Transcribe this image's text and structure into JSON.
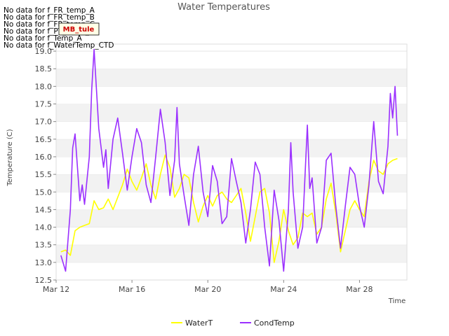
{
  "chart_data": {
    "type": "line",
    "title": "Water Temperatures",
    "xlabel": "Time",
    "ylabel": "Temperature (C)",
    "xlim": [
      "Mar 12",
      "Mar 30 12:00"
    ],
    "ylim": [
      12.5,
      19.2
    ],
    "x_ticks": [
      "Mar 12",
      "Mar 16",
      "Mar 20",
      "Mar 24",
      "Mar 28"
    ],
    "y_ticks": [
      "12.5",
      "13.0",
      "13.5",
      "14.0",
      "14.5",
      "15.0",
      "15.5",
      "16.0",
      "16.5",
      "17.0",
      "17.5",
      "18.0",
      "18.5",
      "19.0"
    ],
    "grid": "horizontal bands",
    "legend_position": "bottom-center",
    "no_data_messages": [
      "No data for f_FR_temp_A",
      "No data for f_FR_temp_B",
      "No data for f_FR_temp_C",
      "No data for f_PT_temp_A",
      "No data for f_Temp_A",
      "No data for f_WaterTemp_CTD"
    ],
    "tag_label": "MB_tule",
    "series": [
      {
        "name": "WaterT",
        "color": "#ffff00",
        "points": [
          [
            "Mar 12 06:00",
            13.3
          ],
          [
            "Mar 12 12:00",
            13.35
          ],
          [
            "Mar 12 18:00",
            13.2
          ],
          [
            "Mar 13 00:00",
            13.9
          ],
          [
            "Mar 13 06:00",
            14.0
          ],
          [
            "Mar 13 12:00",
            14.05
          ],
          [
            "Mar 13 18:00",
            14.1
          ],
          [
            "Mar 14 00:00",
            14.75
          ],
          [
            "Mar 14 06:00",
            14.5
          ],
          [
            "Mar 14 12:00",
            14.55
          ],
          [
            "Mar 14 18:00",
            14.8
          ],
          [
            "Mar 15 00:00",
            14.5
          ],
          [
            "Mar 15 12:00",
            15.2
          ],
          [
            "Mar 15 18:00",
            15.65
          ],
          [
            "Mar 16 00:00",
            15.3
          ],
          [
            "Mar 16 06:00",
            15.05
          ],
          [
            "Mar 16 12:00",
            15.4
          ],
          [
            "Mar 16 18:00",
            15.8
          ],
          [
            "Mar 17 00:00",
            15.2
          ],
          [
            "Mar 17 06:00",
            14.8
          ],
          [
            "Mar 17 12:00",
            15.5
          ],
          [
            "Mar 17 18:00",
            16.05
          ],
          [
            "Mar 18 00:00",
            15.7
          ],
          [
            "Mar 18 06:00",
            14.85
          ],
          [
            "Mar 18 12:00",
            15.1
          ],
          [
            "Mar 18 18:00",
            15.5
          ],
          [
            "Mar 19 00:00",
            15.4
          ],
          [
            "Mar 19 06:00",
            14.7
          ],
          [
            "Mar 19 12:00",
            14.15
          ],
          [
            "Mar 19 18:00",
            14.6
          ],
          [
            "Mar 20 00:00",
            14.9
          ],
          [
            "Mar 20 06:00",
            14.6
          ],
          [
            "Mar 20 12:00",
            14.9
          ],
          [
            "Mar 20 18:00",
            15.0
          ],
          [
            "Mar 21 00:00",
            14.8
          ],
          [
            "Mar 21 06:00",
            14.7
          ],
          [
            "Mar 21 12:00",
            14.9
          ],
          [
            "Mar 21 18:00",
            15.1
          ],
          [
            "Mar 22 00:00",
            14.4
          ],
          [
            "Mar 22 06:00",
            13.6
          ],
          [
            "Mar 22 12:00",
            14.3
          ],
          [
            "Mar 22 18:00",
            15.0
          ],
          [
            "Mar 23 00:00",
            15.1
          ],
          [
            "Mar 23 06:00",
            14.4
          ],
          [
            "Mar 23 12:00",
            13.0
          ],
          [
            "Mar 23 18:00",
            13.6
          ],
          [
            "Mar 24 00:00",
            14.5
          ],
          [
            "Mar 24 06:00",
            13.9
          ],
          [
            "Mar 24 12:00",
            13.5
          ],
          [
            "Mar 24 18:00",
            13.7
          ],
          [
            "Mar 25 00:00",
            14.4
          ],
          [
            "Mar 25 06:00",
            14.3
          ],
          [
            "Mar 25 12:00",
            14.4
          ],
          [
            "Mar 25 18:00",
            13.8
          ],
          [
            "Mar 26 00:00",
            14.0
          ],
          [
            "Mar 26 06:00",
            14.8
          ],
          [
            "Mar 26 12:00",
            15.25
          ],
          [
            "Mar 26 18:00",
            14.4
          ],
          [
            "Mar 27 00:00",
            13.3
          ],
          [
            "Mar 27 06:00",
            13.9
          ],
          [
            "Mar 27 12:00",
            14.5
          ],
          [
            "Mar 27 18:00",
            14.75
          ],
          [
            "Mar 28 00:00",
            14.5
          ],
          [
            "Mar 28 06:00",
            14.3
          ],
          [
            "Mar 28 12:00",
            15.3
          ],
          [
            "Mar 28 18:00",
            15.9
          ],
          [
            "Mar 29 00:00",
            15.6
          ],
          [
            "Mar 29 06:00",
            15.5
          ],
          [
            "Mar 29 12:00",
            15.8
          ],
          [
            "Mar 29 18:00",
            15.9
          ],
          [
            "Mar 30 00:00",
            15.95
          ]
        ]
      },
      {
        "name": "CondTemp",
        "color": "#9b30ff",
        "points": [
          [
            "Mar 12 06:00",
            13.2
          ],
          [
            "Mar 12 12:00",
            12.75
          ],
          [
            "Mar 12 18:00",
            14.5
          ],
          [
            "Mar 12 21:00",
            16.25
          ],
          [
            "Mar 13 00:00",
            16.65
          ],
          [
            "Mar 13 06:00",
            14.75
          ],
          [
            "Mar 13 09:00",
            15.2
          ],
          [
            "Mar 13 12:00",
            14.65
          ],
          [
            "Mar 13 18:00",
            16.0
          ],
          [
            "Mar 13 21:00",
            17.9
          ],
          [
            "Mar 14 00:00",
            19.05
          ],
          [
            "Mar 14 06:00",
            16.8
          ],
          [
            "Mar 14 12:00",
            15.7
          ],
          [
            "Mar 14 15:00",
            16.2
          ],
          [
            "Mar 14 18:00",
            15.1
          ],
          [
            "Mar 15 00:00",
            16.5
          ],
          [
            "Mar 15 06:00",
            17.1
          ],
          [
            "Mar 15 12:00",
            16.1
          ],
          [
            "Mar 15 18:00",
            15.05
          ],
          [
            "Mar 16 00:00",
            16.0
          ],
          [
            "Mar 16 06:00",
            16.8
          ],
          [
            "Mar 16 12:00",
            16.4
          ],
          [
            "Mar 16 18:00",
            15.2
          ],
          [
            "Mar 17 00:00",
            14.7
          ],
          [
            "Mar 17 06:00",
            16.0
          ],
          [
            "Mar 17 12:00",
            17.35
          ],
          [
            "Mar 17 18:00",
            16.4
          ],
          [
            "Mar 18 00:00",
            14.9
          ],
          [
            "Mar 18 06:00",
            15.9
          ],
          [
            "Mar 18 09:00",
            17.4
          ],
          [
            "Mar 18 12:00",
            15.8
          ],
          [
            "Mar 18 18:00",
            14.9
          ],
          [
            "Mar 19 00:00",
            14.05
          ],
          [
            "Mar 19 06:00",
            15.5
          ],
          [
            "Mar 19 12:00",
            16.3
          ],
          [
            "Mar 19 18:00",
            15.0
          ],
          [
            "Mar 20 00:00",
            14.3
          ],
          [
            "Mar 20 06:00",
            15.75
          ],
          [
            "Mar 20 12:00",
            15.3
          ],
          [
            "Mar 20 18:00",
            14.1
          ],
          [
            "Mar 21 00:00",
            14.3
          ],
          [
            "Mar 21 06:00",
            15.95
          ],
          [
            "Mar 21 12:00",
            15.3
          ],
          [
            "Mar 21 18:00",
            14.7
          ],
          [
            "Mar 22 00:00",
            13.55
          ],
          [
            "Mar 22 06:00",
            14.5
          ],
          [
            "Mar 22 12:00",
            15.85
          ],
          [
            "Mar 22 18:00",
            15.5
          ],
          [
            "Mar 23 00:00",
            14.0
          ],
          [
            "Mar 23 06:00",
            12.9
          ],
          [
            "Mar 23 12:00",
            15.05
          ],
          [
            "Mar 23 18:00",
            14.2
          ],
          [
            "Mar 24 00:00",
            12.75
          ],
          [
            "Mar 24 06:00",
            14.5
          ],
          [
            "Mar 24 09:00",
            16.4
          ],
          [
            "Mar 24 12:00",
            15.0
          ],
          [
            "Mar 24 18:00",
            13.4
          ],
          [
            "Mar 25 00:00",
            14.0
          ],
          [
            "Mar 25 06:00",
            16.9
          ],
          [
            "Mar 25 09:00",
            15.1
          ],
          [
            "Mar 25 12:00",
            15.4
          ],
          [
            "Mar 25 18:00",
            13.55
          ],
          [
            "Mar 26 00:00",
            14.0
          ],
          [
            "Mar 26 06:00",
            15.9
          ],
          [
            "Mar 26 12:00",
            16.1
          ],
          [
            "Mar 26 18:00",
            14.6
          ],
          [
            "Mar 27 00:00",
            13.4
          ],
          [
            "Mar 27 06:00",
            14.6
          ],
          [
            "Mar 27 12:00",
            15.7
          ],
          [
            "Mar 27 18:00",
            15.5
          ],
          [
            "Mar 28 00:00",
            14.6
          ],
          [
            "Mar 28 06:00",
            14.0
          ],
          [
            "Mar 28 12:00",
            15.2
          ],
          [
            "Mar 28 18:00",
            17.0
          ],
          [
            "Mar 29 00:00",
            15.3
          ],
          [
            "Mar 29 06:00",
            14.95
          ],
          [
            "Mar 29 12:00",
            16.3
          ],
          [
            "Mar 29 15:00",
            17.8
          ],
          [
            "Mar 29 18:00",
            17.1
          ],
          [
            "Mar 29 21:00",
            18.0
          ],
          [
            "Mar 30 00:00",
            16.6
          ]
        ]
      }
    ]
  }
}
